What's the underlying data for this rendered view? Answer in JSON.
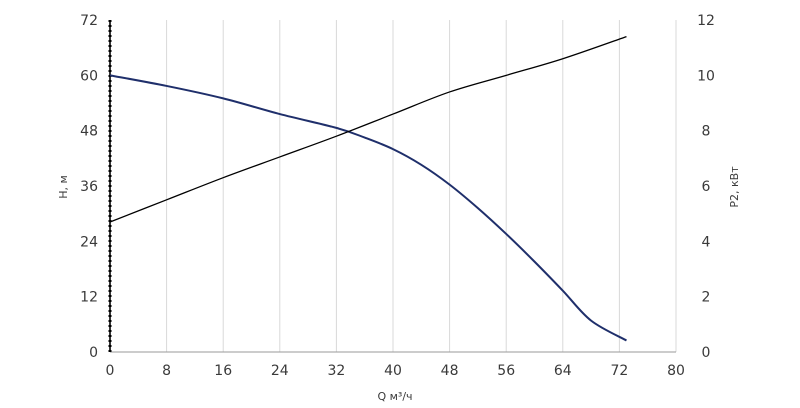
{
  "chart_data": {
    "type": "line",
    "xlabel": "Q м³/ч",
    "ylabel_left": "H, м",
    "ylabel_right": "P2, кВт",
    "xlim": [
      0,
      80
    ],
    "ylim_left": [
      0,
      72
    ],
    "ylim_right": [
      0,
      12
    ],
    "x_ticks": [
      "0",
      "8",
      "16",
      "24",
      "32",
      "40",
      "48",
      "56",
      "64",
      "72",
      "80"
    ],
    "y_left_ticks": [
      "0",
      "12",
      "24",
      "36",
      "48",
      "60",
      "72"
    ],
    "y_right_ticks": [
      "0",
      "2",
      "4",
      "6",
      "8",
      "10",
      "12"
    ],
    "grid": "vertical",
    "series": [
      {
        "axis": "left",
        "color": "#1f2f6b",
        "x": [
          0,
          8,
          16,
          24,
          32,
          36,
          40,
          44,
          48,
          52,
          56,
          60,
          64,
          68,
          73
        ],
        "values": [
          60,
          57.7,
          55,
          51.6,
          48.6,
          46.5,
          44,
          40.6,
          36.3,
          31.2,
          25.6,
          19.6,
          13.3,
          6.8,
          2.5
        ]
      },
      {
        "axis": "right",
        "color": "#000000",
        "x": [
          0,
          8,
          16,
          24,
          32,
          40,
          48,
          56,
          64,
          73
        ],
        "values": [
          4.7,
          5.5,
          6.3,
          7.05,
          7.8,
          8.6,
          9.4,
          10.0,
          10.6,
          11.4
        ]
      }
    ]
  }
}
